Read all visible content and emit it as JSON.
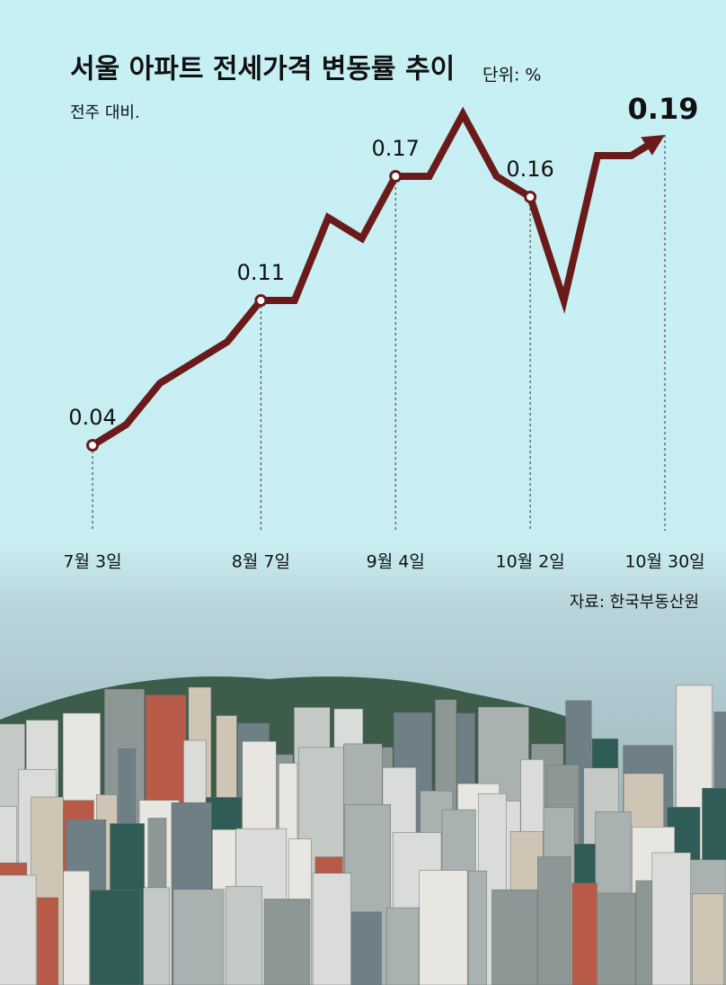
{
  "chart_data": {
    "type": "line",
    "title": "서울 아파트 전세가격 변동률 추이",
    "unit": "단위: %",
    "subtitle": "전주 대비.",
    "source": "자료: 한국부동산원",
    "categories": [
      "7월 3일",
      null,
      null,
      null,
      null,
      "8월 7일",
      null,
      null,
      null,
      "9월 4일",
      null,
      null,
      null,
      "10월 2일",
      null,
      null,
      null,
      "10월 30일"
    ],
    "series": [
      {
        "name": "서울 아파트 전세가격 변동률",
        "color": "#6b1a1a",
        "values": [
          0.04,
          0.05,
          0.07,
          0.08,
          0.09,
          0.11,
          0.11,
          0.15,
          0.14,
          0.17,
          0.17,
          0.2,
          0.17,
          0.16,
          0.11,
          0.18,
          0.18,
          0.19
        ]
      }
    ],
    "ylim": [
      0,
      0.22
    ]
  }
}
